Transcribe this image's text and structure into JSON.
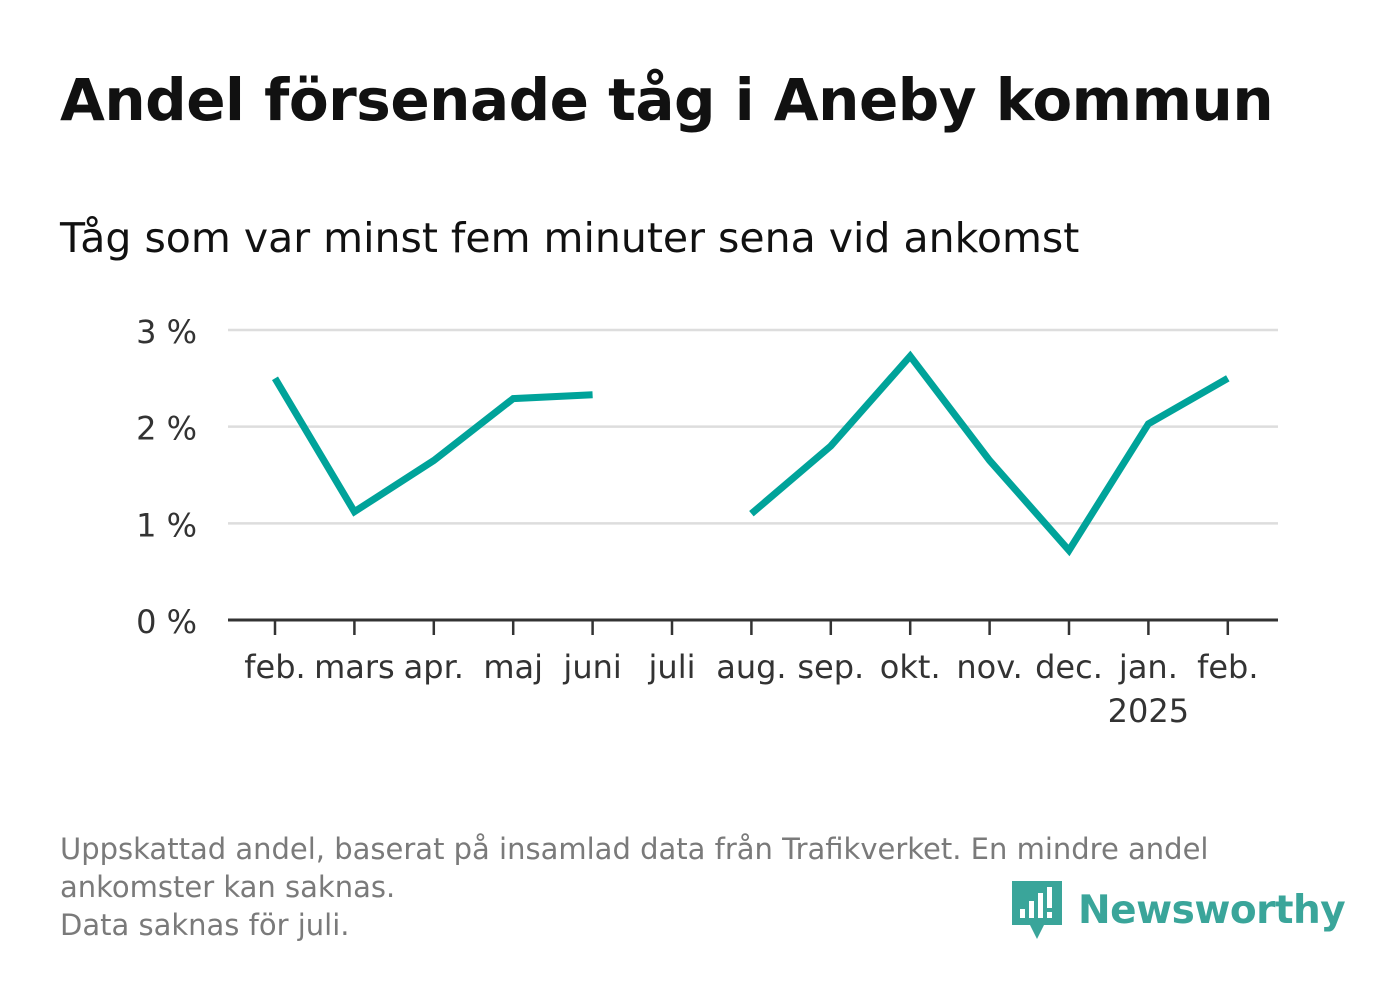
{
  "title": "Andel försenade tåg i Aneby kommun",
  "subtitle": "Tåg som var minst fem minuter sena vid ankomst",
  "footnote": {
    "line1": "Uppskattad andel, baserat på insamlad data från Trafikverket. En mindre andel",
    "line2": "ankomster kan saknas.",
    "line3": "Data saknas för juli."
  },
  "brand": {
    "name": "Newsworthy",
    "icon": "newsworthy-logo-icon",
    "color": "#3aa59a"
  },
  "chart_data": {
    "type": "line",
    "categories": [
      "feb.",
      "mars",
      "apr.",
      "maj",
      "juni",
      "juli",
      "aug.",
      "sep.",
      "okt.",
      "nov.",
      "dec.",
      "jan.",
      "feb."
    ],
    "category_sublabels": [
      "",
      "",
      "",
      "",
      "",
      "",
      "",
      "",
      "",
      "",
      "",
      "2025",
      ""
    ],
    "series": [
      {
        "color": "#00a39a",
        "values": [
          2.5,
          1.12,
          1.65,
          2.29,
          2.33,
          null,
          1.1,
          1.8,
          2.73,
          1.65,
          0.72,
          2.03,
          2.5
        ]
      }
    ],
    "y_ticks": [
      0,
      1,
      2,
      3
    ],
    "y_tick_labels": [
      "0 %",
      "1 %",
      "2 %",
      "3 %"
    ],
    "ylim": [
      0,
      3
    ],
    "grid": true,
    "legend": "none",
    "colors": {
      "line": "#00a39a",
      "grid": "#dddddd",
      "axis": "#333333",
      "tick_text": "#333333"
    }
  }
}
